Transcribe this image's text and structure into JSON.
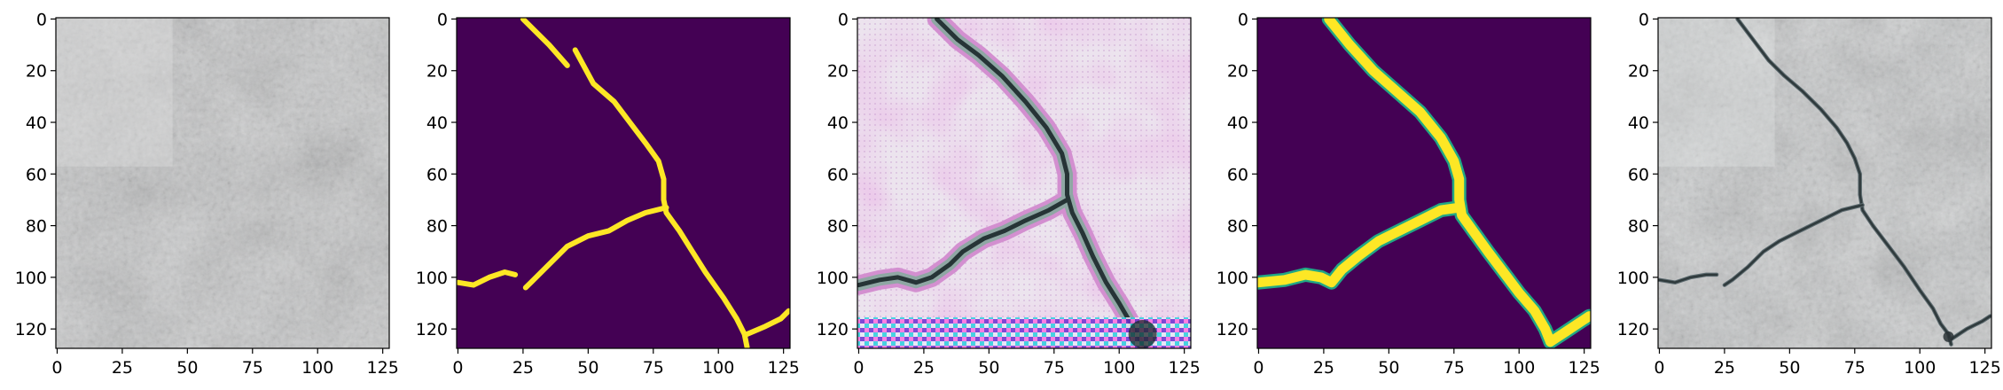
{
  "figure": {
    "panel_count": 5,
    "panel_contents": [
      "concrete surface photo (no visible crack)",
      "binary crack mask (yellow on purple)",
      "stylized/generated crack image with artifacts",
      "smoothed crack mask (yellow on purple)",
      "concrete surface with overlaid crack"
    ]
  },
  "chart_data": [
    {
      "type": "heatmap",
      "panel": 1,
      "content": "texture-photo",
      "image_size": [
        128,
        128
      ],
      "xlim": [
        0,
        127
      ],
      "ylim": [
        127,
        0
      ],
      "x_ticks": [
        0,
        25,
        50,
        75,
        100,
        125
      ],
      "y_ticks": [
        0,
        20,
        40,
        60,
        80,
        100,
        120
      ],
      "x_tick_labels": [
        "0",
        "25",
        "50",
        "75",
        "100",
        "125"
      ],
      "y_tick_labels": [
        "0",
        "20",
        "40",
        "60",
        "80",
        "100",
        "120"
      ],
      "colors": {
        "base": "#c6c7c8",
        "dark": "#9c9fa4",
        "light": "#e1e2e3"
      }
    },
    {
      "type": "heatmap",
      "panel": 2,
      "content": "binary-mask",
      "image_size": [
        128,
        128
      ],
      "xlim": [
        0,
        127
      ],
      "ylim": [
        127,
        0
      ],
      "x_ticks": [
        0,
        25,
        50,
        75,
        100,
        125
      ],
      "y_ticks": [
        0,
        20,
        40,
        60,
        80,
        100,
        120
      ],
      "x_tick_labels": [
        "0",
        "25",
        "50",
        "75",
        "100",
        "125"
      ],
      "y_tick_labels": [
        "0",
        "20",
        "40",
        "60",
        "80",
        "100",
        "120"
      ],
      "colors": {
        "background": "#440154",
        "crack": "#fde725"
      },
      "crack_paths": [
        [
          [
            25,
            0
          ],
          [
            35,
            10
          ],
          [
            42,
            18
          ]
        ],
        [
          [
            45,
            12
          ],
          [
            52,
            25
          ],
          [
            60,
            32
          ],
          [
            66,
            40
          ],
          [
            72,
            48
          ],
          [
            77,
            55
          ],
          [
            79,
            62
          ],
          [
            79,
            70
          ],
          [
            80,
            75
          ],
          [
            85,
            82
          ],
          [
            90,
            90
          ],
          [
            95,
            98
          ],
          [
            102,
            108
          ],
          [
            107,
            116
          ],
          [
            110,
            122
          ],
          [
            111,
            127
          ]
        ],
        [
          [
            80,
            73
          ],
          [
            72,
            75
          ],
          [
            65,
            78
          ],
          [
            58,
            82
          ],
          [
            50,
            84
          ],
          [
            42,
            88
          ],
          [
            35,
            95
          ],
          [
            28,
            102
          ],
          [
            26,
            104
          ]
        ],
        [
          [
            0,
            102
          ],
          [
            6,
            103
          ],
          [
            12,
            100
          ],
          [
            18,
            98
          ],
          [
            22,
            99
          ]
        ],
        [
          [
            111,
            122
          ],
          [
            118,
            119
          ],
          [
            124,
            116
          ],
          [
            127,
            113
          ]
        ]
      ]
    },
    {
      "type": "heatmap",
      "panel": 3,
      "content": "generated-crack-image",
      "image_size": [
        128,
        128
      ],
      "xlim": [
        0,
        127
      ],
      "ylim": [
        127,
        0
      ],
      "x_ticks": [
        0,
        25,
        50,
        75,
        100,
        125
      ],
      "y_ticks": [
        0,
        20,
        40,
        60,
        80,
        100,
        120
      ],
      "x_tick_labels": [
        "0",
        "25",
        "50",
        "75",
        "100",
        "125"
      ],
      "y_tick_labels": [
        "0",
        "20",
        "40",
        "60",
        "80",
        "100",
        "120"
      ],
      "colors": {
        "base": "#ece4ee",
        "pink": "#d79fd2",
        "crack": "#263436",
        "crack_halo": "#8fa7a4"
      },
      "crack_paths": [
        [
          [
            30,
            0
          ],
          [
            38,
            8
          ],
          [
            46,
            14
          ],
          [
            55,
            22
          ],
          [
            64,
            32
          ],
          [
            72,
            42
          ],
          [
            78,
            52
          ],
          [
            80,
            60
          ],
          [
            80,
            68
          ],
          [
            82,
            75
          ],
          [
            86,
            83
          ],
          [
            90,
            92
          ],
          [
            95,
            102
          ],
          [
            100,
            110
          ],
          [
            104,
            117
          ],
          [
            108,
            124
          ],
          [
            110,
            127
          ]
        ],
        [
          [
            80,
            70
          ],
          [
            73,
            74
          ],
          [
            64,
            78
          ],
          [
            56,
            82
          ],
          [
            48,
            85
          ],
          [
            40,
            90
          ],
          [
            35,
            95
          ],
          [
            28,
            100
          ],
          [
            22,
            102
          ],
          [
            15,
            100
          ],
          [
            8,
            101
          ],
          [
            0,
            103
          ]
        ]
      ]
    },
    {
      "type": "heatmap",
      "panel": 4,
      "content": "smooth-mask",
      "image_size": [
        128,
        128
      ],
      "xlim": [
        0,
        127
      ],
      "ylim": [
        127,
        0
      ],
      "x_ticks": [
        0,
        25,
        50,
        75,
        100,
        125
      ],
      "y_ticks": [
        0,
        20,
        40,
        60,
        80,
        100,
        120
      ],
      "x_tick_labels": [
        "0",
        "25",
        "50",
        "75",
        "100",
        "125"
      ],
      "y_tick_labels": [
        "0",
        "20",
        "40",
        "60",
        "80",
        "100",
        "120"
      ],
      "colors": {
        "background": "#440154",
        "crack": "#fde725",
        "edge": "#21a785"
      },
      "crack_paths": [
        [
          [
            27,
            0
          ],
          [
            35,
            10
          ],
          [
            44,
            20
          ],
          [
            53,
            28
          ],
          [
            62,
            36
          ],
          [
            70,
            46
          ],
          [
            75,
            55
          ],
          [
            77,
            62
          ],
          [
            77,
            70
          ],
          [
            78,
            76
          ],
          [
            83,
            83
          ],
          [
            88,
            90
          ],
          [
            94,
            98
          ],
          [
            100,
            106
          ],
          [
            106,
            113
          ],
          [
            110,
            120
          ],
          [
            112,
            125
          ]
        ],
        [
          [
            77,
            73
          ],
          [
            70,
            74
          ],
          [
            62,
            78
          ],
          [
            54,
            82
          ],
          [
            46,
            86
          ],
          [
            38,
            92
          ],
          [
            32,
            97
          ],
          [
            28,
            102
          ],
          [
            24,
            100
          ],
          [
            18,
            99
          ],
          [
            10,
            101
          ],
          [
            0,
            102
          ]
        ],
        [
          [
            112,
            125
          ],
          [
            118,
            121
          ],
          [
            124,
            117
          ],
          [
            127,
            115
          ]
        ]
      ]
    },
    {
      "type": "heatmap",
      "panel": 5,
      "content": "texture-with-crack",
      "image_size": [
        128,
        128
      ],
      "xlim": [
        0,
        127
      ],
      "ylim": [
        127,
        0
      ],
      "x_ticks": [
        0,
        25,
        50,
        75,
        100,
        125
      ],
      "y_ticks": [
        0,
        20,
        40,
        60,
        80,
        100,
        120
      ],
      "x_tick_labels": [
        "0",
        "25",
        "50",
        "75",
        "100",
        "125"
      ],
      "y_tick_labels": [
        "0",
        "20",
        "40",
        "60",
        "80",
        "100",
        "120"
      ],
      "colors": {
        "base": "#c8cacb",
        "dark": "#a0a4a8",
        "light": "#e3e4e5",
        "crack": "#2f3a3c"
      },
      "crack_paths": [
        [
          [
            30,
            0
          ],
          [
            36,
            8
          ],
          [
            42,
            16
          ],
          [
            48,
            22
          ],
          [
            55,
            28
          ],
          [
            62,
            35
          ],
          [
            68,
            42
          ],
          [
            72,
            48
          ],
          [
            75,
            54
          ],
          [
            77,
            60
          ],
          [
            77,
            68
          ],
          [
            78,
            74
          ],
          [
            82,
            80
          ],
          [
            88,
            88
          ],
          [
            94,
            96
          ],
          [
            100,
            105
          ],
          [
            105,
            112
          ],
          [
            108,
            118
          ],
          [
            111,
            122
          ],
          [
            112,
            126
          ]
        ],
        [
          [
            78,
            72
          ],
          [
            70,
            74
          ],
          [
            62,
            78
          ],
          [
            54,
            82
          ],
          [
            46,
            86
          ],
          [
            40,
            90
          ],
          [
            34,
            96
          ],
          [
            28,
            101
          ],
          [
            25,
            103
          ]
        ],
        [
          [
            0,
            101
          ],
          [
            6,
            102
          ],
          [
            12,
            100
          ],
          [
            18,
            99
          ],
          [
            22,
            99
          ]
        ],
        [
          [
            112,
            124
          ],
          [
            118,
            120
          ],
          [
            124,
            117
          ],
          [
            127,
            115
          ]
        ]
      ]
    }
  ]
}
